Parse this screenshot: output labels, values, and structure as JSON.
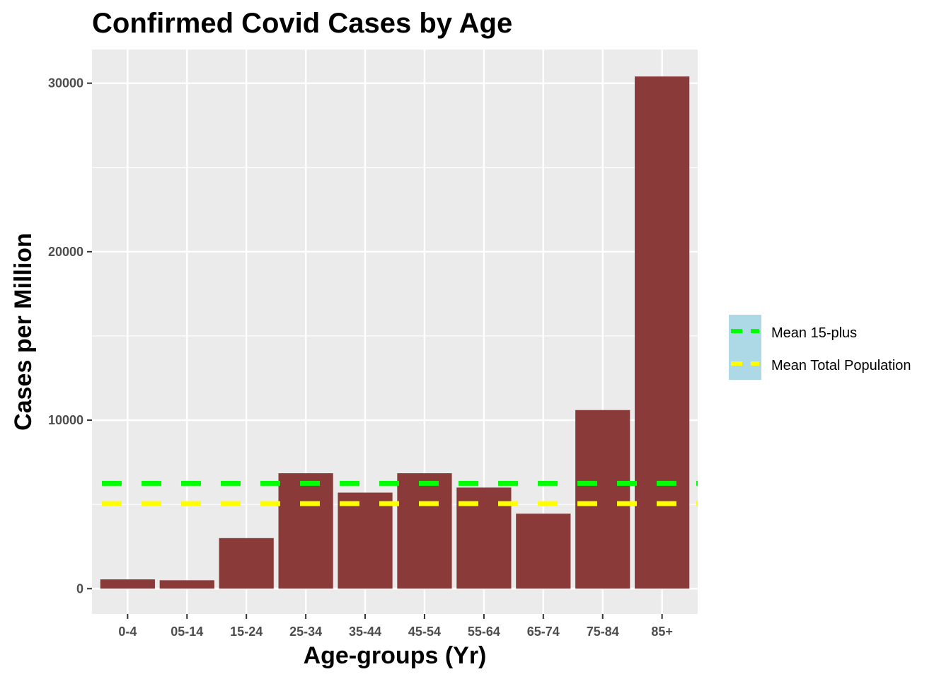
{
  "chart_data": {
    "type": "bar",
    "title": "Confirmed Covid Cases by Age",
    "xlabel": "Age-groups (Yr)",
    "ylabel": "Cases per Million",
    "categories": [
      "0-4",
      "05-14",
      "15-24",
      "25-34",
      "35-44",
      "45-54",
      "55-64",
      "65-74",
      "75-84",
      "85+"
    ],
    "values": [
      550,
      500,
      3000,
      6850,
      5700,
      6850,
      6000,
      4450,
      10600,
      30400
    ],
    "ylim": [
      -1500,
      32000
    ],
    "yticks": [
      0,
      10000,
      20000,
      30000
    ],
    "ytick_labels": [
      "0",
      "10000",
      "20000",
      "30000"
    ],
    "grid": true,
    "bar_color": "#8b3a3a",
    "reference_lines": [
      {
        "name": "Mean 15-plus",
        "value": 6250,
        "color": "#00ff00",
        "style": "dashed"
      },
      {
        "name": "Mean Total Population",
        "value": 5050,
        "color": "#ffff00",
        "style": "dashed"
      }
    ],
    "legend": {
      "position": "right",
      "background": "#add8e6",
      "entries": [
        "Mean 15-plus",
        "Mean Total Population"
      ]
    },
    "panel_background": "#ebebeb"
  }
}
